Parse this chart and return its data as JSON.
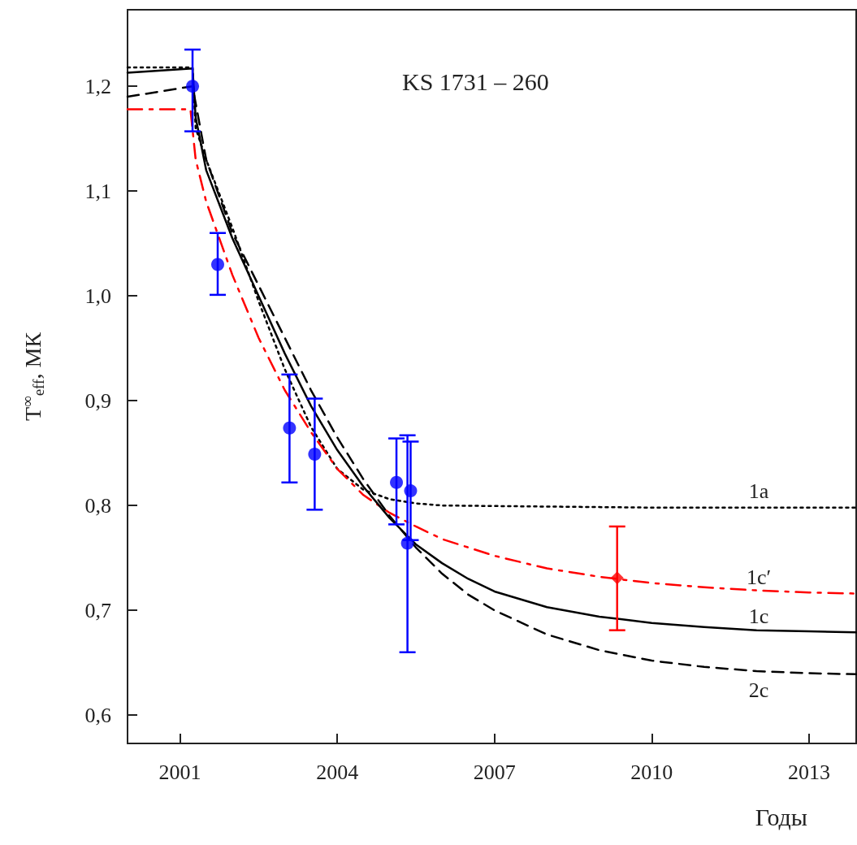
{
  "chart_data": {
    "type": "line",
    "title": "KS 1731 – 260",
    "xlabel": "Годы",
    "ylabel": "T$^{∞}$$_{eff}$, МК",
    "xlim": [
      2000,
      2013.9
    ],
    "xticks": [
      2001,
      2004,
      2007,
      2010,
      2013
    ],
    "ylim": [
      0.573,
      1.273
    ],
    "yticks": [
      {
        "value": 0.6,
        "label": "0,6"
      },
      {
        "value": 0.7,
        "label": "0,7"
      },
      {
        "value": 0.8,
        "label": "0,8"
      },
      {
        "value": 0.9,
        "label": "0,9"
      },
      {
        "value": 1.0,
        "label": "1,0"
      },
      {
        "value": 1.1,
        "label": "1,1"
      },
      {
        "value": 1.2,
        "label": "1,2"
      }
    ],
    "grid": false,
    "marker": "none",
    "series": [
      {
        "name": "1a",
        "color": "#000000",
        "line_style": "dotted",
        "x": [
          2000,
          2001.24,
          2001.3,
          2001.5,
          2002,
          2002.5,
          2003,
          2003.5,
          2004,
          2004.5,
          2005,
          2005.5,
          2006,
          2008,
          2010,
          2013.9
        ],
        "values": [
          1.218,
          1.218,
          1.16,
          1.13,
          1.065,
          0.995,
          0.93,
          0.875,
          0.835,
          0.815,
          0.806,
          0.802,
          0.8,
          0.799,
          0.798,
          0.798
        ]
      },
      {
        "name": "1c′",
        "color": "#ff0000",
        "line_style": "dashdot",
        "x": [
          2000,
          2001.2,
          2001.3,
          2001.5,
          2002,
          2002.5,
          2003,
          2003.5,
          2004,
          2004.5,
          2005,
          2005.5,
          2006,
          2007,
          2008,
          2009,
          2010,
          2011,
          2012,
          2013,
          2013.9
        ],
        "values": [
          1.178,
          1.178,
          1.13,
          1.09,
          1.02,
          0.96,
          0.91,
          0.87,
          0.835,
          0.81,
          0.793,
          0.78,
          0.768,
          0.752,
          0.74,
          0.732,
          0.726,
          0.722,
          0.719,
          0.717,
          0.716
        ]
      },
      {
        "name": "1c",
        "color": "#000000",
        "line_style": "solid",
        "x": [
          2000,
          2001.24,
          2001.3,
          2001.5,
          2002,
          2002.5,
          2003,
          2003.5,
          2004,
          2004.5,
          2005,
          2005.5,
          2006,
          2006.5,
          2007,
          2008,
          2009,
          2010,
          2011,
          2012,
          2013,
          2013.9
        ],
        "values": [
          1.213,
          1.217,
          1.17,
          1.12,
          1.055,
          1.0,
          0.945,
          0.895,
          0.853,
          0.818,
          0.788,
          0.763,
          0.745,
          0.73,
          0.718,
          0.703,
          0.694,
          0.688,
          0.684,
          0.681,
          0.68,
          0.679
        ]
      },
      {
        "name": "2c",
        "color": "#000000",
        "line_style": "dashed",
        "x": [
          2000,
          2001.24,
          2001.5,
          2002,
          2002.5,
          2003,
          2003.5,
          2004,
          2004.5,
          2005,
          2005.5,
          2006,
          2006.5,
          2007,
          2008,
          2009,
          2010,
          2011,
          2012,
          2013,
          2013.9
        ],
        "values": [
          1.19,
          1.2,
          1.13,
          1.06,
          1.01,
          0.96,
          0.91,
          0.865,
          0.825,
          0.79,
          0.76,
          0.735,
          0.715,
          0.7,
          0.677,
          0.662,
          0.652,
          0.646,
          0.642,
          0.64,
          0.639
        ]
      },
      {
        "type": "scatter",
        "color": "#0000ff",
        "marker": "circle",
        "x": [
          2001.24,
          2001.72,
          2003.09,
          2003.57,
          2005.13,
          2005.4,
          2005.34
        ],
        "values": [
          1.2,
          1.03,
          0.874,
          0.849,
          0.822,
          0.814,
          0.764
        ],
        "errors": [
          [
            1.157,
            1.235
          ],
          [
            1.001,
            1.06
          ],
          [
            0.822,
            0.925
          ],
          [
            0.796,
            0.902
          ],
          [
            0.782,
            0.864
          ],
          [
            0.767,
            0.861
          ],
          [
            0.66,
            0.867
          ]
        ]
      },
      {
        "type": "scatter",
        "color": "#ff0000",
        "marker": "diamond",
        "x": [
          2009.34
        ],
        "values": [
          0.731
        ],
        "errors": [
          [
            0.681,
            0.78
          ]
        ]
      }
    ]
  }
}
